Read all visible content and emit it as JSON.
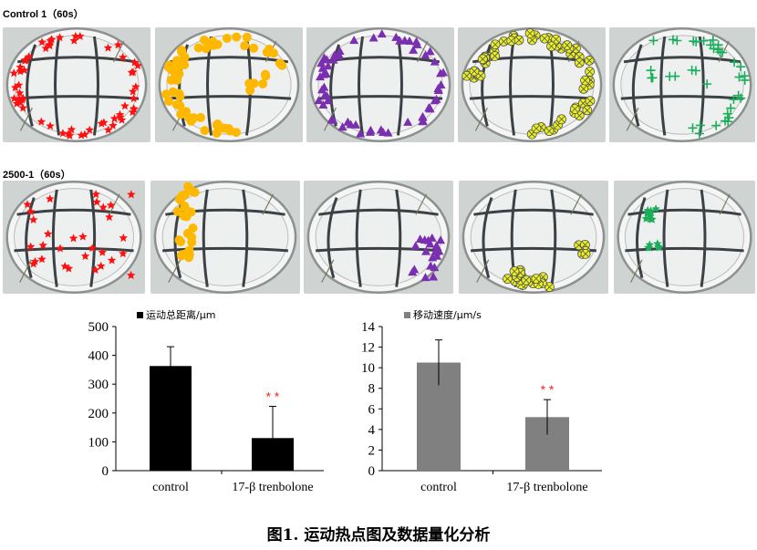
{
  "row_labels": [
    "Control 1（60s）",
    "2500-1（60s）"
  ],
  "photo_rows": [
    [
      {
        "color": "#ff1010",
        "marker": "star",
        "track": "ring"
      },
      {
        "color": "#ffb800",
        "marker": "circle",
        "track": "ring-left"
      },
      {
        "color": "#7a2fb0",
        "marker": "triangle",
        "track": "ring"
      },
      {
        "color": "#eaf020",
        "marker": "crossed-circle",
        "track": "ring-top"
      },
      {
        "color": "#1aae5a",
        "marker": "plus",
        "track": "partial-ring"
      }
    ],
    [
      {
        "color": "#ff1010",
        "marker": "star",
        "track": "scatter"
      },
      {
        "color": "#ffb800",
        "marker": "circle",
        "track": "left-edge"
      },
      {
        "color": "#7a2fb0",
        "marker": "triangle",
        "track": "right-edge"
      },
      {
        "color": "#eaf020",
        "marker": "crossed-circle",
        "track": "bottom-cluster"
      },
      {
        "color": "#1aae5a",
        "marker": "star",
        "track": "small-cluster"
      }
    ]
  ],
  "chart_data": [
    {
      "type": "bar",
      "categories": [
        "control",
        "17-β trenbolone"
      ],
      "values": [
        363,
        113
      ],
      "errors": [
        67,
        110
      ],
      "legend": "运动总距离/μm",
      "color": "#000000",
      "ylim": [
        0,
        500
      ],
      "yticks": [
        0,
        100,
        200,
        300,
        400,
        500
      ],
      "significance": [
        "",
        "* *"
      ],
      "significance_color": "#ff2020"
    },
    {
      "type": "bar",
      "categories": [
        "control",
        "17-β trenbolone"
      ],
      "values": [
        10.5,
        5.2
      ],
      "errors": [
        2.2,
        1.7
      ],
      "legend": "移动速度/μm/s",
      "color": "#808080",
      "ylim": [
        0,
        14
      ],
      "yticks": [
        0,
        2,
        4,
        6,
        8,
        10,
        12,
        14
      ],
      "significance": [
        "",
        "* *"
      ],
      "significance_color": "#ff2020"
    }
  ],
  "caption": "图1. 运动热点图及数据量化分析"
}
